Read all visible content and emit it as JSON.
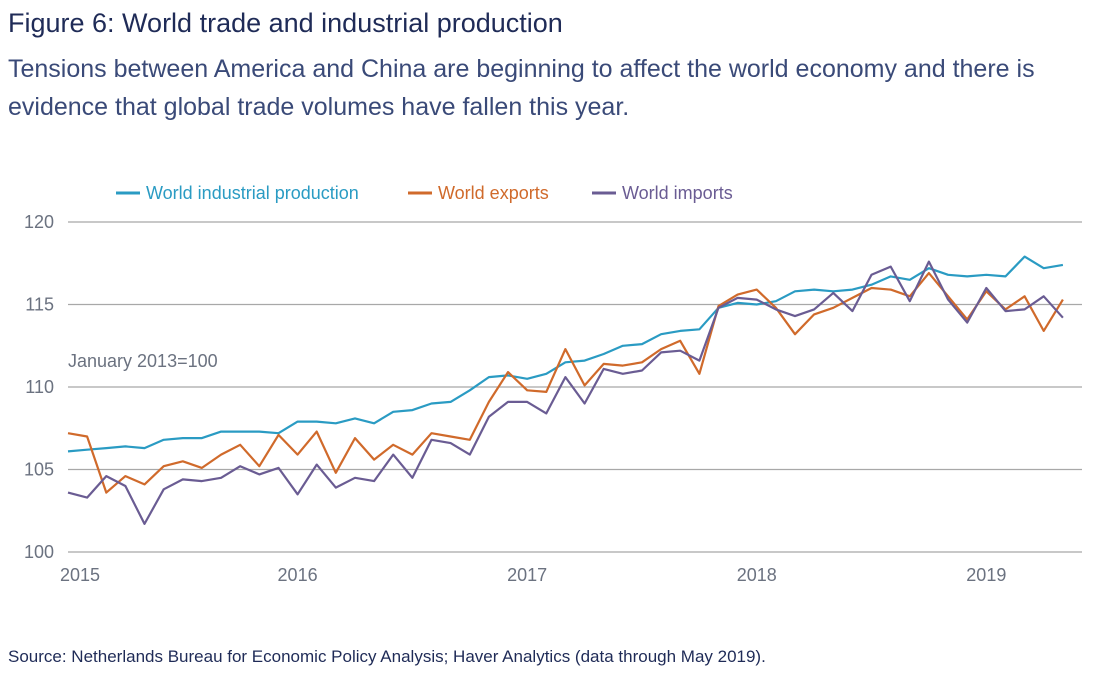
{
  "title": "Figure 6: World trade and industrial production",
  "subtitle": "Tensions between America and China are beginning to affect the world economy and there is evidence that global trade volumes have fallen this year.",
  "source": "Source: Netherlands Bureau for Economic Policy Analysis; Haver Analytics (data through May 2019).",
  "chart_data": {
    "type": "line",
    "annotation": "January 2013=100",
    "ylim": [
      100,
      120
    ],
    "yticks": [
      100,
      105,
      110,
      115,
      120
    ],
    "xlim": [
      2015,
      2019.4167
    ],
    "xticks": [
      {
        "value": 2015,
        "label": "2015"
      },
      {
        "value": 2016,
        "label": "2016"
      },
      {
        "value": 2017,
        "label": "2017"
      },
      {
        "value": 2018,
        "label": "2018"
      },
      {
        "value": 2019,
        "label": "2019"
      }
    ],
    "grid": true,
    "legend_position": "top",
    "x_start": "2015-01",
    "x_step_months": 1,
    "series": [
      {
        "name": "World industrial production",
        "color": "#2a9bc3",
        "values": [
          106.1,
          106.2,
          106.3,
          106.4,
          106.3,
          106.8,
          106.9,
          106.9,
          107.3,
          107.3,
          107.3,
          107.2,
          107.9,
          107.9,
          107.8,
          108.1,
          107.8,
          108.5,
          108.6,
          109.0,
          109.1,
          109.8,
          110.6,
          110.7,
          110.5,
          110.8,
          111.5,
          111.6,
          112.0,
          112.5,
          112.6,
          113.2,
          113.4,
          113.5,
          114.8,
          115.1,
          115.0,
          115.2,
          115.8,
          115.9,
          115.8,
          115.9,
          116.2,
          116.7,
          116.5,
          117.2,
          116.8,
          116.7,
          116.8,
          116.7,
          117.9,
          117.2,
          117.4
        ]
      },
      {
        "name": "World exports",
        "color": "#d06a2b",
        "values": [
          107.2,
          107.0,
          103.6,
          104.6,
          104.1,
          105.2,
          105.5,
          105.1,
          105.9,
          106.5,
          105.2,
          107.1,
          105.9,
          107.3,
          104.8,
          106.9,
          105.6,
          106.5,
          105.9,
          107.2,
          107.0,
          106.8,
          109.1,
          110.9,
          109.8,
          109.7,
          112.3,
          110.1,
          111.4,
          111.3,
          111.5,
          112.3,
          112.8,
          110.8,
          114.9,
          115.6,
          115.9,
          114.8,
          113.2,
          114.4,
          114.8,
          115.4,
          116.0,
          115.9,
          115.5,
          116.9,
          115.5,
          114.1,
          115.8,
          114.7,
          115.5,
          113.4,
          115.3
        ]
      },
      {
        "name": "World imports",
        "color": "#6a5c93",
        "values": [
          103.6,
          103.3,
          104.6,
          104.0,
          101.7,
          103.8,
          104.4,
          104.3,
          104.5,
          105.2,
          104.7,
          105.1,
          103.5,
          105.3,
          103.9,
          104.5,
          104.3,
          105.9,
          104.5,
          106.8,
          106.6,
          105.9,
          108.2,
          109.1,
          109.1,
          108.4,
          110.6,
          109.0,
          111.1,
          110.8,
          111.0,
          112.1,
          112.2,
          111.6,
          114.8,
          115.4,
          115.3,
          114.7,
          114.3,
          114.7,
          115.7,
          114.6,
          116.8,
          117.3,
          115.2,
          117.6,
          115.3,
          113.9,
          116.0,
          114.6,
          114.7,
          115.5,
          114.2
        ]
      }
    ]
  }
}
